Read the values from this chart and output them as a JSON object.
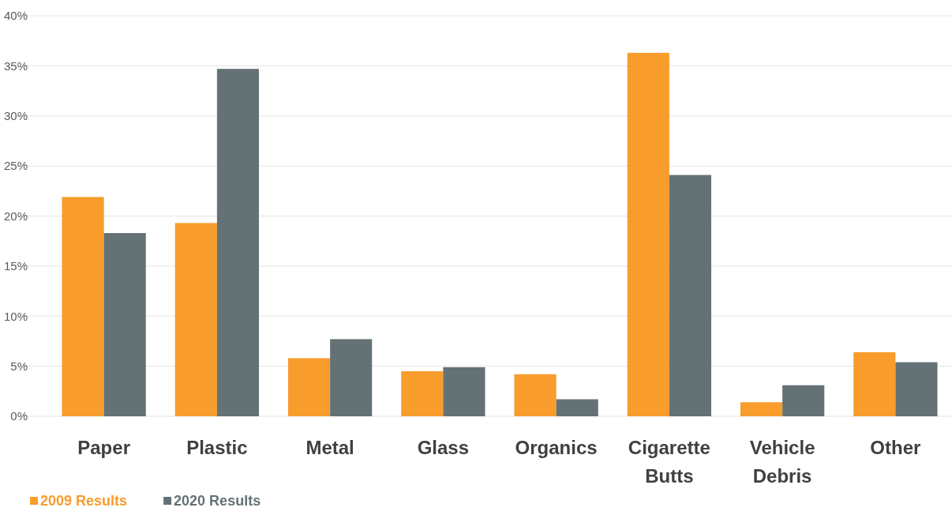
{
  "chart_data": {
    "type": "bar",
    "categories": [
      "Paper",
      "Plastic",
      "Metal",
      "Glass",
      "Organics",
      "Cigarette Butts",
      "Vehicle Debris",
      "Other"
    ],
    "series": [
      {
        "name": "2009 Results",
        "color": "#f89c2c",
        "values": [
          21.9,
          19.3,
          5.8,
          4.5,
          4.2,
          36.3,
          1.4,
          6.4
        ]
      },
      {
        "name": "2020 Results",
        "color": "#657275",
        "values": [
          18.3,
          34.7,
          7.7,
          4.9,
          1.7,
          24.1,
          3.1,
          5.4
        ]
      }
    ],
    "ylim": [
      0,
      40
    ],
    "yticks": [
      {
        "value": 0,
        "label": "0%"
      },
      {
        "value": 5,
        "label": "5%"
      },
      {
        "value": 10,
        "label": "10%"
      },
      {
        "value": 15,
        "label": "15%"
      },
      {
        "value": 20,
        "label": "20%"
      },
      {
        "value": 25,
        "label": "25%"
      },
      {
        "value": 30,
        "label": "30%"
      },
      {
        "value": 35,
        "label": "35%"
      },
      {
        "value": 40,
        "label": "40%"
      }
    ],
    "grid": "y",
    "legend": "bottom left"
  }
}
